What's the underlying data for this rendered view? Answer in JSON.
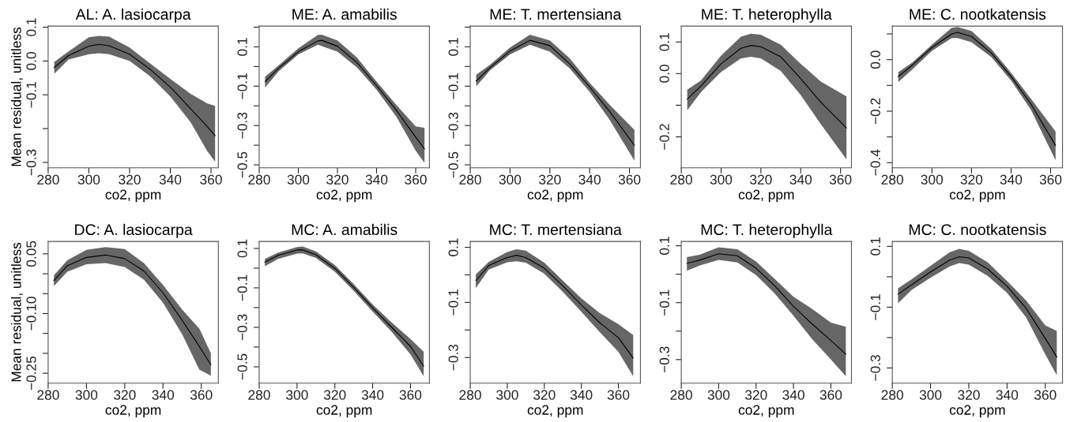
{
  "chart_data": [
    {
      "type": "line",
      "title": "AL: A. lasiocarpa",
      "xlabel": "co2, ppm",
      "ylabel": "Mean residual, unitless",
      "xlim": [
        280,
        363.6
      ],
      "xticks": [
        280,
        300,
        320,
        340,
        360
      ],
      "ylim": [
        -0.316,
        0.103
      ],
      "yticks": [
        {
          "value": -0.3,
          "label": "−0.3"
        },
        {
          "value": -0.2,
          "label": null
        },
        {
          "value": -0.1,
          "label": "−0.1"
        },
        {
          "value": 0.0,
          "label": "0.0"
        },
        {
          "value": 0.1,
          "label": "0.1"
        }
      ],
      "series": [
        {
          "color": "#000000",
          "x": [
            283,
            290,
            300,
            305,
            310,
            320,
            330,
            340,
            350,
            358,
            362
          ],
          "values": [
            -0.019,
            0.016,
            0.044,
            0.049,
            0.045,
            0.02,
            -0.024,
            -0.077,
            -0.141,
            -0.193,
            -0.221
          ],
          "lower": [
            -0.038,
            0.004,
            0.02,
            0.023,
            0.02,
            0.0,
            -0.045,
            -0.105,
            -0.181,
            -0.265,
            -0.298
          ],
          "upper": [
            -0.003,
            0.028,
            0.07,
            0.074,
            0.072,
            0.04,
            -0.007,
            -0.053,
            -0.097,
            -0.125,
            -0.133
          ]
        }
      ]
    },
    {
      "type": "line",
      "title": "ME: A. amabilis",
      "xlabel": "co2, ppm",
      "xlim": [
        280,
        367
      ],
      "xticks": [
        280,
        300,
        320,
        340,
        360
      ],
      "ylim": [
        -0.515,
        0.205
      ],
      "yticks": [
        {
          "value": -0.5,
          "label": "−0.5"
        },
        {
          "value": -0.4,
          "label": null
        },
        {
          "value": -0.3,
          "label": "−0.3"
        },
        {
          "value": -0.2,
          "label": null
        },
        {
          "value": -0.1,
          "label": "−0.1"
        },
        {
          "value": 0.0,
          "label": null
        },
        {
          "value": 0.1,
          "label": "0.1"
        },
        {
          "value": 0.2,
          "label": null
        }
      ],
      "series": [
        {
          "color": "#000000",
          "x": [
            283,
            290,
            300,
            310,
            312,
            320,
            330,
            340,
            350,
            360,
            364.5
          ],
          "values": [
            -0.077,
            -0.008,
            0.075,
            0.13,
            0.133,
            0.103,
            0.02,
            -0.097,
            -0.221,
            -0.359,
            -0.419
          ],
          "lower": [
            -0.107,
            -0.024,
            0.061,
            0.11,
            0.103,
            0.075,
            -0.005,
            -0.118,
            -0.253,
            -0.428,
            -0.49
          ],
          "upper": [
            -0.052,
            0.006,
            0.092,
            0.161,
            0.162,
            0.133,
            0.045,
            -0.077,
            -0.194,
            -0.304,
            -0.311
          ]
        }
      ]
    },
    {
      "type": "line",
      "title": "ME: T. mertensiana",
      "xlabel": "co2, ppm",
      "xlim": [
        280,
        365.5
      ],
      "xticks": [
        280,
        300,
        320,
        340,
        360
      ],
      "ylim": [
        -0.515,
        0.205
      ],
      "yticks": [
        {
          "value": -0.5,
          "label": "−0.5"
        },
        {
          "value": -0.4,
          "label": null
        },
        {
          "value": -0.3,
          "label": "−0.3"
        },
        {
          "value": -0.2,
          "label": null
        },
        {
          "value": -0.1,
          "label": "−0.1"
        },
        {
          "value": 0.0,
          "label": null
        },
        {
          "value": 0.1,
          "label": "0.1"
        },
        {
          "value": 0.2,
          "label": null
        }
      ],
      "series": [
        {
          "color": "#000000",
          "x": [
            283,
            290,
            300,
            310,
            320,
            330,
            340,
            350,
            362.5
          ],
          "values": [
            -0.074,
            -0.005,
            0.078,
            0.133,
            0.106,
            0.013,
            -0.104,
            -0.228,
            -0.401
          ],
          "lower": [
            -0.101,
            -0.019,
            0.061,
            0.11,
            0.075,
            -0.01,
            -0.129,
            -0.27,
            -0.479
          ],
          "upper": [
            -0.042,
            0.009,
            0.096,
            0.162,
            0.133,
            0.041,
            -0.083,
            -0.194,
            -0.322
          ]
        }
      ]
    },
    {
      "type": "line",
      "title": "ME: T. heterophylla",
      "xlabel": "co2, ppm",
      "xlim": [
        280,
        365.5
      ],
      "xticks": [
        280,
        300,
        320,
        340,
        360
      ],
      "ylim": [
        -0.298,
        0.15
      ],
      "yticks": [
        {
          "value": -0.2,
          "label": "−0.2"
        },
        {
          "value": -0.1,
          "label": null
        },
        {
          "value": 0.0,
          "label": "0.0"
        },
        {
          "value": 0.1,
          "label": "0.1"
        }
      ],
      "series": [
        {
          "color": "#000000",
          "x": [
            283,
            290,
            300,
            310,
            315,
            320,
            330,
            340,
            350,
            363
          ],
          "values": [
            -0.081,
            -0.038,
            0.031,
            0.08,
            0.089,
            0.085,
            0.053,
            -0.016,
            -0.09,
            -0.172
          ],
          "lower": [
            -0.116,
            -0.058,
            0.005,
            0.048,
            0.053,
            0.048,
            0.008,
            -0.068,
            -0.159,
            -0.271
          ],
          "upper": [
            -0.051,
            -0.021,
            0.057,
            0.117,
            0.126,
            0.123,
            0.091,
            0.031,
            -0.025,
            -0.072
          ]
        }
      ]
    },
    {
      "type": "line",
      "title": "ME: C. nootkatensis",
      "xlabel": "co2, ppm",
      "xlim": [
        280,
        366
      ],
      "xticks": [
        280,
        300,
        320,
        340,
        360
      ],
      "ylim": [
        -0.42,
        0.13
      ],
      "yticks": [
        {
          "value": -0.4,
          "label": "−0.4"
        },
        {
          "value": -0.3,
          "label": null
        },
        {
          "value": -0.2,
          "label": "−0.2"
        },
        {
          "value": -0.1,
          "label": null
        },
        {
          "value": 0.0,
          "label": "0.0"
        },
        {
          "value": 0.1,
          "label": null
        }
      ],
      "series": [
        {
          "color": "#000000",
          "x": [
            283,
            290,
            300,
            310,
            313,
            320,
            330,
            340,
            350,
            362.5
          ],
          "values": [
            -0.065,
            -0.022,
            0.047,
            0.1,
            0.106,
            0.09,
            0.026,
            -0.065,
            -0.172,
            -0.333
          ],
          "lower": [
            -0.087,
            -0.039,
            0.034,
            0.084,
            0.084,
            0.068,
            0.01,
            -0.081,
            -0.194,
            -0.391
          ],
          "upper": [
            -0.049,
            -0.012,
            0.058,
            0.124,
            0.127,
            0.111,
            0.042,
            -0.051,
            -0.151,
            -0.279
          ]
        }
      ]
    },
    {
      "type": "line",
      "title": "DC: A. lasiocarpa",
      "xlabel": "co2, ppm",
      "ylabel": "Mean residual, unitless",
      "xlim": [
        280,
        368.9
      ],
      "xticks": [
        280,
        300,
        320,
        340,
        360
      ],
      "ylim": [
        -0.275,
        0.081
      ],
      "yticks": [
        {
          "value": -0.25,
          "label": "−0.25"
        },
        {
          "value": -0.2,
          "label": null
        },
        {
          "value": -0.15,
          "label": null
        },
        {
          "value": -0.1,
          "label": "−0.10"
        },
        {
          "value": -0.05,
          "label": null
        },
        {
          "value": 0.0,
          "label": null
        },
        {
          "value": 0.05,
          "label": "0.05"
        }
      ],
      "series": [
        {
          "color": "#000000",
          "x": [
            283,
            290,
            300,
            310,
            320,
            330,
            340,
            350,
            359,
            365
          ],
          "values": [
            -0.017,
            0.02,
            0.041,
            0.047,
            0.038,
            0.007,
            -0.048,
            -0.117,
            -0.183,
            -0.229
          ],
          "lower": [
            -0.031,
            0.005,
            0.024,
            0.027,
            0.017,
            -0.015,
            -0.073,
            -0.152,
            -0.241,
            -0.256
          ],
          "upper": [
            -0.004,
            0.034,
            0.06,
            0.067,
            0.062,
            0.027,
            -0.028,
            -0.09,
            -0.138,
            -0.2
          ]
        }
      ]
    },
    {
      "type": "line",
      "title": "MC: A. amabilis",
      "xlabel": "co2, ppm",
      "xlim": [
        280,
        370
      ],
      "xticks": [
        280,
        300,
        320,
        340,
        360
      ],
      "ylim": [
        -0.583,
        0.135
      ],
      "yticks": [
        {
          "value": -0.5,
          "label": "−0.5"
        },
        {
          "value": -0.4,
          "label": null
        },
        {
          "value": -0.3,
          "label": "−0.3"
        },
        {
          "value": -0.2,
          "label": null
        },
        {
          "value": -0.1,
          "label": "−0.1"
        },
        {
          "value": 0.0,
          "label": null
        },
        {
          "value": 0.1,
          "label": "0.1"
        }
      ],
      "series": [
        {
          "color": "#000000",
          "x": [
            283,
            290,
            300,
            303,
            310,
            320,
            330,
            340,
            350,
            360,
            367
          ],
          "values": [
            0.031,
            0.065,
            0.092,
            0.093,
            0.068,
            -0.001,
            -0.098,
            -0.202,
            -0.299,
            -0.396,
            -0.497
          ],
          "lower": [
            0.01,
            0.047,
            0.074,
            0.075,
            0.052,
            -0.018,
            -0.115,
            -0.22,
            -0.322,
            -0.437,
            -0.548
          ],
          "upper": [
            0.047,
            0.079,
            0.107,
            0.11,
            0.085,
            0.016,
            -0.081,
            -0.184,
            -0.275,
            -0.359,
            -0.424
          ]
        }
      ]
    },
    {
      "type": "line",
      "title": "MC: T. mertensiana",
      "xlabel": "co2, ppm",
      "xlim": [
        280,
        371.9
      ],
      "xticks": [
        280,
        300,
        320,
        340,
        360
      ],
      "ylim": [
        -0.393,
        0.121
      ],
      "yticks": [
        {
          "value": -0.3,
          "label": "−0.3"
        },
        {
          "value": -0.2,
          "label": null
        },
        {
          "value": -0.1,
          "label": "−0.1"
        },
        {
          "value": 0.0,
          "label": null
        },
        {
          "value": 0.1,
          "label": "0.1"
        }
      ],
      "series": [
        {
          "color": "#000000",
          "x": [
            283,
            290,
            300,
            305,
            310,
            320,
            330,
            340,
            350,
            360,
            368
          ],
          "values": [
            -0.021,
            0.034,
            0.063,
            0.071,
            0.063,
            0.024,
            -0.04,
            -0.109,
            -0.174,
            -0.228,
            -0.302
          ],
          "lower": [
            -0.048,
            0.019,
            0.046,
            0.049,
            0.044,
            0.004,
            -0.062,
            -0.134,
            -0.208,
            -0.279,
            -0.368
          ],
          "upper": [
            0.001,
            0.047,
            0.083,
            0.093,
            0.088,
            0.044,
            -0.021,
            -0.085,
            -0.139,
            -0.179,
            -0.218
          ]
        }
      ]
    },
    {
      "type": "line",
      "title": "MC: T. heterophylla",
      "xlabel": "co2, ppm",
      "xlim": [
        280,
        371
      ],
      "xticks": [
        280,
        300,
        320,
        340,
        360
      ],
      "ylim": [
        -0.383,
        0.115
      ],
      "yticks": [
        {
          "value": -0.3,
          "label": "−0.3"
        },
        {
          "value": -0.2,
          "label": null
        },
        {
          "value": -0.1,
          "label": "−0.1"
        },
        {
          "value": 0.0,
          "label": null
        },
        {
          "value": 0.1,
          "label": "0.1"
        }
      ],
      "series": [
        {
          "color": "#000000",
          "x": [
            283,
            290,
            300,
            310,
            320,
            330,
            340,
            350,
            360,
            368
          ],
          "values": [
            0.038,
            0.05,
            0.072,
            0.065,
            0.021,
            -0.041,
            -0.113,
            -0.175,
            -0.233,
            -0.281
          ],
          "lower": [
            0.012,
            0.031,
            0.05,
            0.041,
            -0.003,
            -0.068,
            -0.146,
            -0.228,
            -0.3,
            -0.359
          ],
          "upper": [
            0.06,
            0.069,
            0.095,
            0.088,
            0.045,
            -0.017,
            -0.079,
            -0.122,
            -0.17,
            -0.185
          ]
        }
      ]
    },
    {
      "type": "line",
      "title": "MC: C. nootkatensis",
      "xlabel": "co2, ppm",
      "xlim": [
        280,
        369
      ],
      "xticks": [
        280,
        300,
        320,
        340,
        360
      ],
      "ylim": [
        -0.35,
        0.116
      ],
      "yticks": [
        {
          "value": -0.3,
          "label": "−0.3"
        },
        {
          "value": -0.2,
          "label": null
        },
        {
          "value": -0.1,
          "label": "−0.1"
        },
        {
          "value": 0.0,
          "label": null
        },
        {
          "value": 0.1,
          "label": "0.1"
        }
      ],
      "series": [
        {
          "color": "#000000",
          "x": [
            283,
            290,
            300,
            310,
            315,
            320,
            330,
            340,
            350,
            360,
            366
          ],
          "values": [
            -0.057,
            -0.027,
            0.016,
            0.055,
            0.066,
            0.062,
            0.025,
            -0.031,
            -0.104,
            -0.203,
            -0.264
          ],
          "lower": [
            -0.087,
            -0.044,
            -0.003,
            0.034,
            0.045,
            0.04,
            0.002,
            -0.053,
            -0.134,
            -0.255,
            -0.324
          ],
          "upper": [
            -0.038,
            -0.009,
            0.036,
            0.081,
            0.092,
            0.085,
            0.047,
            -0.014,
            -0.078,
            -0.16,
            -0.178
          ]
        }
      ]
    }
  ]
}
